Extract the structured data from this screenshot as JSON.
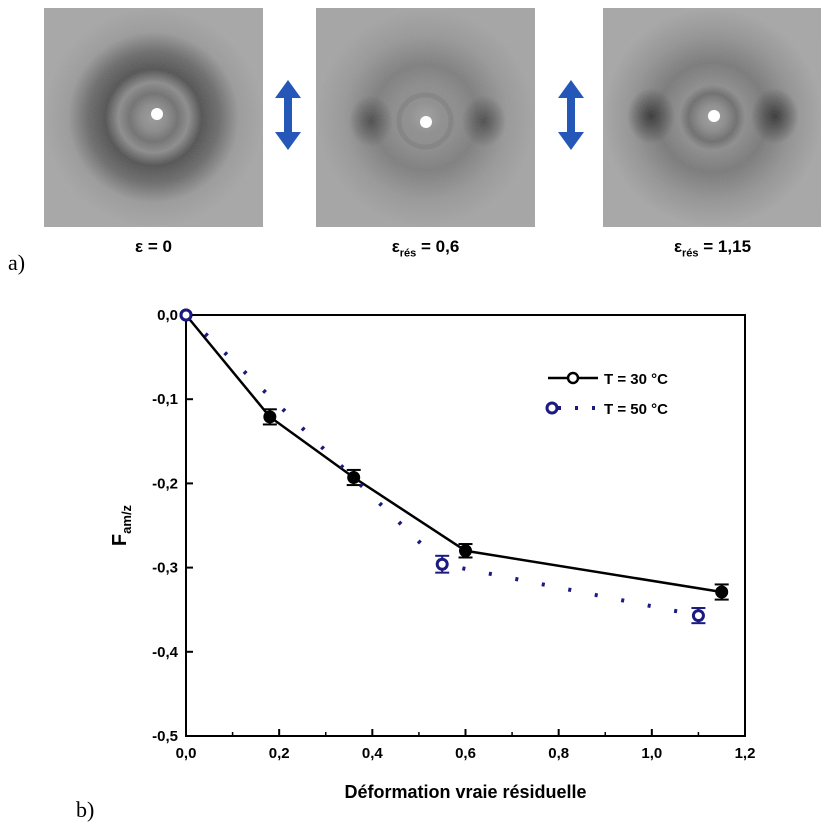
{
  "panel_a": {
    "label": "a)",
    "images": [
      {
        "caption_symbol": "ε",
        "caption_sub": "",
        "caption_value": " = 0",
        "pattern": "isotropic-ring"
      },
      {
        "caption_symbol": "ε",
        "caption_sub": "rés",
        "caption_value": " = 0,6",
        "pattern": "oriented-arcs"
      },
      {
        "caption_symbol": "ε",
        "caption_sub": "rés",
        "caption_value": " = 1,15",
        "pattern": "oriented-arcs-strong"
      }
    ],
    "arrow_icon": "double-arrow-vertical-icon",
    "arrow_color": "#2457b8"
  },
  "panel_b": {
    "label": "b)"
  },
  "chart_data": {
    "type": "line",
    "xlabel": "Déformation vraie résiduelle",
    "ylabel": "F",
    "ylabel_sub": "am/z",
    "xlim": [
      0.0,
      1.2
    ],
    "ylim": [
      -0.5,
      0.0
    ],
    "xticks": [
      0.0,
      0.2,
      0.4,
      0.6,
      0.8,
      1.0,
      1.2
    ],
    "xtick_labels": [
      "0,0",
      "0,2",
      "0,4",
      "0,6",
      "0,8",
      "1,0",
      "1,2"
    ],
    "yticks": [
      0.0,
      -0.1,
      -0.2,
      -0.3,
      -0.4,
      -0.5
    ],
    "ytick_labels": [
      "0,0",
      "-0,1",
      "-0,2",
      "-0,3",
      "-0,4",
      "-0,5"
    ],
    "legend_position": "top-right",
    "grid": false,
    "series": [
      {
        "name": "T = 30 °C",
        "color": "#000000",
        "line": "solid",
        "marker": "filled-circle",
        "x": [
          0.0,
          0.18,
          0.36,
          0.6,
          1.15
        ],
        "y": [
          0.0,
          -0.121,
          -0.193,
          -0.28,
          -0.329
        ],
        "err": [
          0.0,
          0.009,
          0.009,
          0.008,
          0.009
        ]
      },
      {
        "name": "T = 50 °C",
        "color": "#1a1a80",
        "line": "dotted",
        "marker": "open-circle",
        "x": [
          0.0,
          0.55,
          1.1
        ],
        "y": [
          0.0,
          -0.296,
          -0.357
        ],
        "err": [
          0.0,
          0.01,
          0.009
        ]
      }
    ]
  }
}
